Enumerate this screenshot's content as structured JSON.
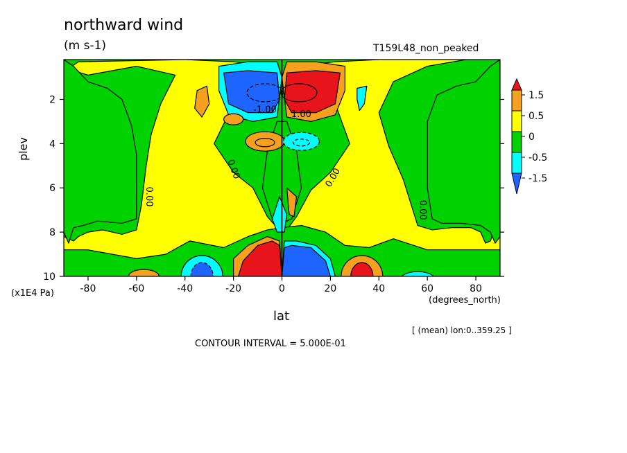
{
  "chart_data": {
    "type": "heatmap",
    "title": "northward wind",
    "units": "(m s-1)",
    "run_label": "T159L48_non_peaked",
    "xlabel": "lat",
    "x_unit": "(degrees_north)",
    "ylabel": "plev",
    "y_unit": "(x1E4 Pa)",
    "xlim": [
      -90,
      90
    ],
    "ylim": [
      10,
      0.2
    ],
    "x_ticks": [
      -80,
      -60,
      -40,
      -20,
      0,
      20,
      40,
      60,
      80
    ],
    "y_ticks": [
      2,
      4,
      6,
      8,
      10
    ],
    "subtitle_right": "[ (mean) lon:0..359.25 ]",
    "contour_interval": "CONTOUR INTERVAL = 5.000E-01",
    "colorbar": {
      "levels": [
        "1.5",
        "0.5",
        "0",
        "-0.5",
        "-1.5"
      ],
      "colors": [
        "#e8141b",
        "#f5a01e",
        "#ffff00",
        "#00d200",
        "#00ffff",
        "#1e64ff"
      ]
    },
    "contour_labels": [
      "0.00",
      "0.00",
      "0.00",
      "0.00",
      "-1.00",
      "1.00"
    ],
    "features": [
      {
        "name": "upper-north-max",
        "lat": 6,
        "plev": 2.0,
        "value": 1.5
      },
      {
        "name": "upper-south-min",
        "lat": -7,
        "plev": 2.0,
        "value": -1.5
      },
      {
        "name": "lower-south-max",
        "lat": -6,
        "plev": 9.6,
        "value": 1.5
      },
      {
        "name": "lower-north-min",
        "lat": 8,
        "plev": 9.6,
        "value": -1.5
      },
      {
        "name": "mid-south-pos",
        "lat": -7,
        "plev": 4.0,
        "value": 1.0
      },
      {
        "name": "mid-north-neg",
        "lat": 8,
        "plev": 4.0,
        "value": -1.0
      },
      {
        "name": "sh-subtrop-min",
        "lat": -33,
        "plev": 9.7,
        "value": -1.5
      },
      {
        "name": "nh-subtrop-max",
        "lat": 33,
        "plev": 9.7,
        "value": 1.5
      },
      {
        "name": "sh-mid-pos",
        "lat": -57,
        "plev": 9.8,
        "value": 0.5
      },
      {
        "name": "nh-mid-neg",
        "lat": 56,
        "plev": 9.8,
        "value": -0.5
      },
      {
        "name": "upper-sh-pos",
        "lat": -33,
        "plev": 1.8,
        "value": 0.5
      },
      {
        "name": "upper-nh-neg",
        "lat": 33,
        "plev": 1.8,
        "value": -0.5
      }
    ]
  }
}
